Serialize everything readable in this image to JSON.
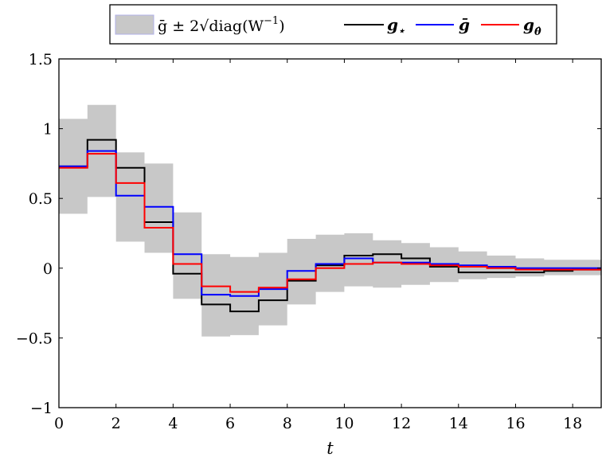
{
  "chart_data": {
    "type": "line",
    "step": "post",
    "xlabel": "t",
    "ylabel": "",
    "title": "",
    "xlim": [
      0,
      19
    ],
    "ylim": [
      -1,
      1.5
    ],
    "xticks": [
      0,
      2,
      4,
      6,
      8,
      10,
      12,
      14,
      16,
      18
    ],
    "xtick_labels": [
      "0",
      "2",
      "4",
      "6",
      "8",
      "10",
      "12",
      "14",
      "16",
      "18"
    ],
    "yticks": [
      -1,
      -0.5,
      0,
      0.5,
      1,
      1.5
    ],
    "ytick_labels": [
      "−1",
      "−0.5",
      "0",
      "0.5",
      "1",
      "1.5"
    ],
    "legend_position": "top-center",
    "band": {
      "legend_math": [
        "ḡ ± 2√diag(W",
        "−1",
        ")"
      ],
      "color": "#c8c8c8",
      "lower": [
        0.39,
        0.51,
        0.19,
        0.11,
        -0.22,
        -0.49,
        -0.48,
        -0.41,
        -0.26,
        -0.17,
        -0.13,
        -0.14,
        -0.12,
        -0.1,
        -0.08,
        -0.07,
        -0.06,
        -0.05,
        -0.05
      ],
      "upper": [
        1.07,
        1.17,
        0.83,
        0.75,
        0.4,
        0.1,
        0.08,
        0.11,
        0.21,
        0.24,
        0.25,
        0.2,
        0.18,
        0.15,
        0.12,
        0.09,
        0.07,
        0.06,
        0.06
      ]
    },
    "series": [
      {
        "name": "g⋆",
        "legend_math": [
          "g",
          "⋆"
        ],
        "color": "#000000",
        "values": [
          0.73,
          0.92,
          0.72,
          0.33,
          -0.04,
          -0.26,
          -0.31,
          -0.23,
          -0.09,
          0.02,
          0.09,
          0.1,
          0.07,
          0.01,
          -0.03,
          -0.03,
          -0.03,
          -0.02,
          -0.01
        ]
      },
      {
        "name": "ḡ",
        "legend_math": [
          "ḡ",
          ""
        ],
        "color": "#0000ff",
        "values": [
          0.73,
          0.84,
          0.52,
          0.44,
          0.1,
          -0.19,
          -0.2,
          -0.15,
          -0.02,
          0.03,
          0.07,
          0.04,
          0.04,
          0.03,
          0.02,
          0.01,
          0.0,
          0.0,
          0.0
        ]
      },
      {
        "name": "gθ̂",
        "legend_math": [
          "g",
          "θ̂"
        ],
        "color": "#ff0000",
        "values": [
          0.72,
          0.82,
          0.61,
          0.29,
          0.03,
          -0.13,
          -0.17,
          -0.14,
          -0.08,
          0.0,
          0.03,
          0.04,
          0.03,
          0.02,
          0.01,
          0.0,
          -0.01,
          -0.01,
          -0.01
        ]
      }
    ]
  }
}
